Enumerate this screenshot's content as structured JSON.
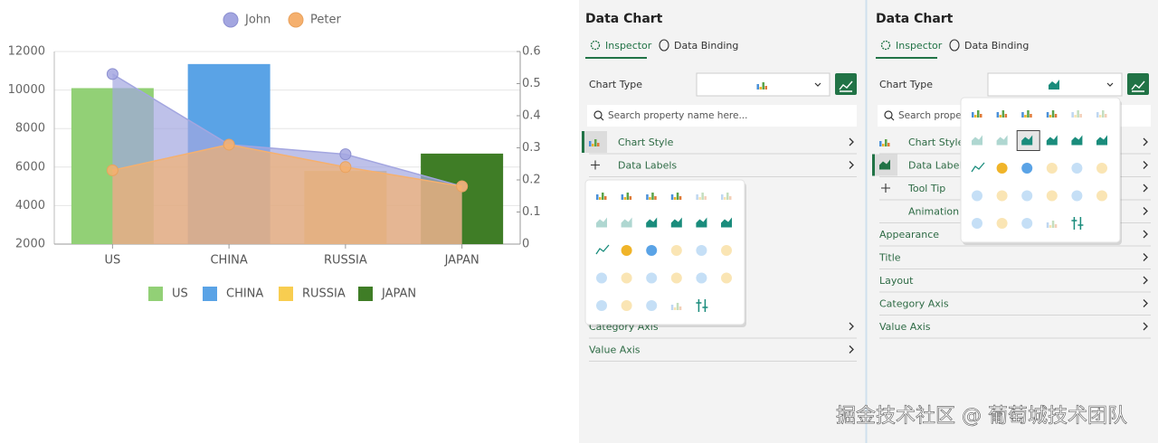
{
  "chart_data": {
    "type": "combo",
    "categories": [
      "US",
      "CHINA",
      "RUSSIA",
      "JAPAN"
    ],
    "values": [
      10100,
      11350,
      5800,
      6700
    ],
    "colors": [
      "#92d076",
      "#5aa3e6",
      "#f8cd50",
      "#3f7d26"
    ],
    "series": [
      {
        "name": "John",
        "color": "#a3a6e0",
        "type": "area",
        "axis": "y2",
        "values": [
          0.53,
          0.31,
          0.28,
          0.18
        ]
      },
      {
        "name": "Peter",
        "color": "#f5b06e",
        "type": "area",
        "axis": "y2",
        "values": [
          0.23,
          0.31,
          0.24,
          0.18
        ]
      }
    ],
    "ylim": [
      2000,
      12000
    ],
    "yticks": [
      2000,
      4000,
      6000,
      8000,
      10000,
      12000
    ],
    "y2lim": [
      0,
      0.6
    ],
    "y2ticks": [
      0,
      0.1,
      0.2,
      0.3,
      0.4,
      0.5,
      0.6
    ],
    "grid": true,
    "legend": "top"
  },
  "panels": [
    {
      "title": "Data Chart",
      "tabs": [
        "Inspector",
        "Data Binding"
      ],
      "chart_type_label": "Chart Type",
      "search_placeholder": "Search property name here...",
      "sections": [
        "Chart Style",
        "Data Labels",
        "Category Axis",
        "Value Axis"
      ]
    },
    {
      "title": "Data Chart",
      "tabs": [
        "Inspector",
        "Data Binding"
      ],
      "chart_type_label": "Chart Type",
      "search_placeholder": "Search property name here...",
      "sections": [
        "Chart Style",
        "Data Labels",
        "Tool Tip",
        "Animation",
        "Appearance",
        "Title",
        "Layout",
        "Category Axis",
        "Value Axis"
      ]
    }
  ],
  "watermark": "掘金技术社区 @ 葡萄城技术团队"
}
